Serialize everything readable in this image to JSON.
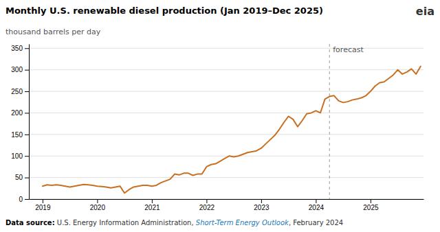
{
  "chart_data": {
    "type": "line",
    "title": "Monthly U.S. renewable diesel production (Jan 2019–Dec 2025)",
    "subtitle": "thousand barrels per day",
    "logo": "eia",
    "source": [
      "Data source:",
      " U.S. Energy Information Administration, ",
      "Short-Term Energy Outlook",
      ", February 2024"
    ],
    "color": "#C87020",
    "grid": true,
    "xlim": [
      2018.75,
      2025.97
    ],
    "xticks": [
      2019,
      2020,
      2021,
      2022,
      2023,
      2024,
      2025
    ],
    "ylim": [
      0,
      360
    ],
    "yticks": [
      0,
      50,
      100,
      150,
      200,
      250,
      300,
      350
    ],
    "annotations": [
      {
        "text": "forecast",
        "x": 2024.25
      }
    ],
    "x": [
      2019,
      2019.083333333333,
      2019.166666666667,
      2019.25,
      2019.333333333333,
      2019.416666666667,
      2019.5,
      2019.583333333333,
      2019.666666666667,
      2019.75,
      2019.833333333333,
      2019.916666666667,
      2020,
      2020.083333333333,
      2020.166666666667,
      2020.25,
      2020.333333333333,
      2020.416666666667,
      2020.5,
      2020.583333333333,
      2020.666666666667,
      2020.75,
      2020.833333333333,
      2020.916666666667,
      2021,
      2021.083333333333,
      2021.166666666667,
      2021.25,
      2021.333333333333,
      2021.416666666667,
      2021.5,
      2021.583333333333,
      2021.666666666667,
      2021.75,
      2021.833333333333,
      2021.916666666667,
      2022,
      2022.083333333333,
      2022.166666666667,
      2022.25,
      2022.333333333333,
      2022.416666666667,
      2022.5,
      2022.583333333333,
      2022.666666666667,
      2022.75,
      2022.833333333333,
      2022.916666666667,
      2023,
      2023.083333333333,
      2023.166666666667,
      2023.25,
      2023.333333333333,
      2023.416666666667,
      2023.5,
      2023.583333333333,
      2023.666666666667,
      2023.75,
      2023.833333333333,
      2023.916666666667,
      2024,
      2024.083333333333,
      2024.166666666667,
      2024.25,
      2024.333333333333,
      2024.416666666667,
      2024.5,
      2024.583333333333,
      2024.666666666667,
      2024.75,
      2024.833333333333,
      2024.916666666667,
      2025,
      2025.083333333333,
      2025.166666666667,
      2025.25,
      2025.333333333333,
      2025.416666666667,
      2025.5,
      2025.583333333333,
      2025.666666666667,
      2025.75,
      2025.833333333333,
      2025.916666666667
    ],
    "values": [
      30,
      33,
      32,
      33,
      32,
      30,
      28,
      30,
      32,
      34,
      33,
      32,
      30,
      29,
      28,
      26,
      28,
      30,
      14,
      22,
      28,
      30,
      32,
      32,
      30,
      32,
      38,
      42,
      46,
      58,
      56,
      60,
      60,
      55,
      58,
      58,
      75,
      80,
      82,
      88,
      94,
      100,
      98,
      100,
      104,
      108,
      110,
      112,
      118,
      128,
      138,
      148,
      162,
      178,
      192,
      185,
      168,
      182,
      198,
      200,
      205,
      200,
      232,
      238,
      240,
      228,
      224,
      226,
      230,
      232,
      235,
      240,
      250,
      262,
      270,
      272,
      280,
      288,
      300,
      290,
      295,
      302,
      290,
      308
    ]
  }
}
